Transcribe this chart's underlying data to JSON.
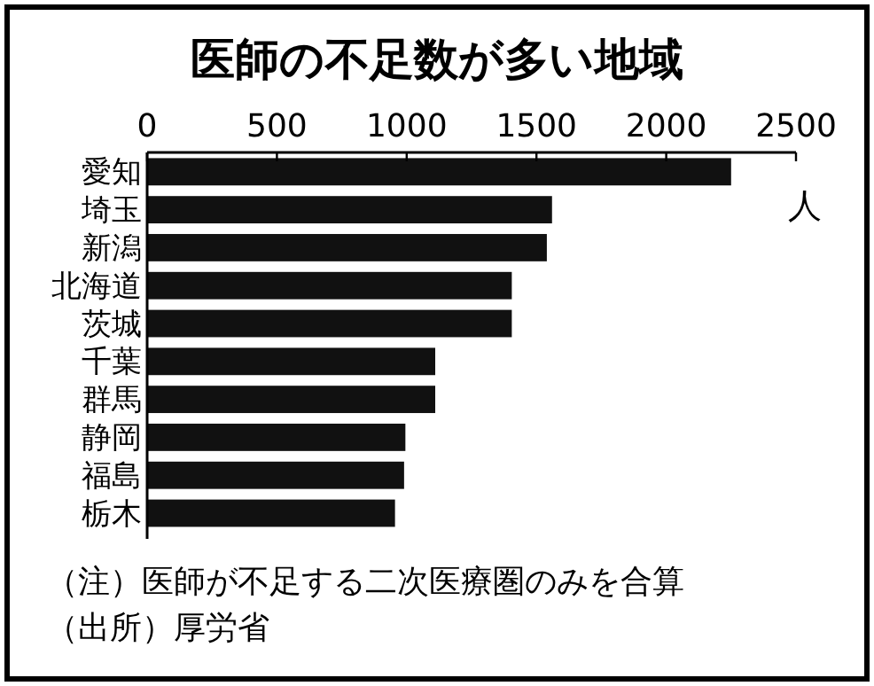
{
  "chart_data": {
    "type": "bar",
    "orientation": "horizontal",
    "title": "医師の不足数が多い地域",
    "xlabel": "人",
    "categories": [
      "愛知",
      "埼玉",
      "新潟",
      "北海道",
      "茨城",
      "千葉",
      "群馬",
      "静岡",
      "福島",
      "栃木"
    ],
    "values": [
      2250,
      1560,
      1540,
      1405,
      1405,
      1110,
      1110,
      995,
      990,
      955
    ],
    "color": "#111111",
    "xlim": [
      0,
      2500
    ],
    "xticks": [
      0,
      500,
      1000,
      1500,
      2000,
      2500
    ],
    "grid": false,
    "annotations": [
      "（注）医師が不足する二次医療圏のみを合算",
      "（出所）厚労省"
    ]
  }
}
